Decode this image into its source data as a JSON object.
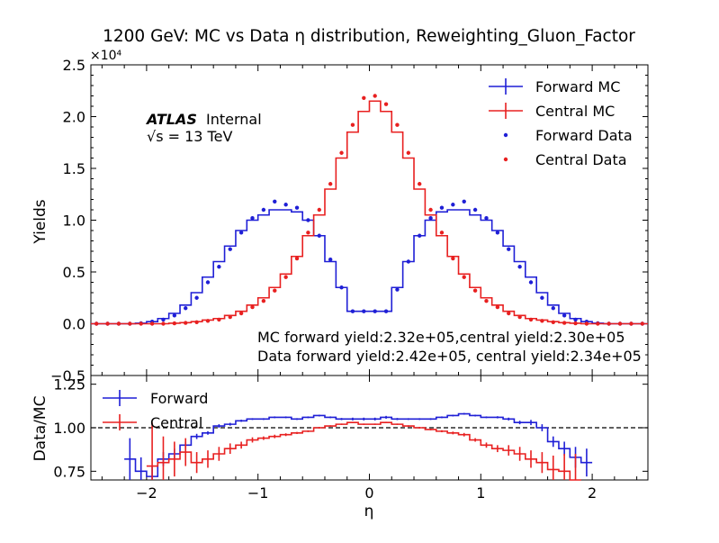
{
  "chart_data": [
    {
      "type": "step-line",
      "panel": "main",
      "title": "1200 GeV: MC vs Data η distribution, Reweighting_Gluon_Factor",
      "ylabel": "Yields",
      "y_scale_label": "×10⁴",
      "xlim": [
        -2.5,
        2.5
      ],
      "ylim": [
        -0.5,
        2.5
      ],
      "y_ticks": [
        "−0.5",
        "0.0",
        "0.5",
        "1.0",
        "1.5",
        "2.0",
        "2.5"
      ],
      "y_tick_values": [
        -0.5,
        0.0,
        0.5,
        1.0,
        1.5,
        2.0,
        2.5
      ],
      "atlas_label": "ATLAS",
      "atlas_sub": "Internal",
      "energy_label": "√s = 13 TeV",
      "annotations": [
        "MC forward yield:2.32e+05,central yield:2.30e+05",
        "Data forward yield:2.42e+05, central yield:2.34e+05"
      ],
      "legend": [
        "Forward MC",
        "Central MC",
        "Forward Data",
        "Central Data"
      ],
      "legend_position": "top-right",
      "bin_edges": [
        -2.5,
        -2.4,
        -2.3,
        -2.2,
        -2.1,
        -2.0,
        -1.9,
        -1.8,
        -1.7,
        -1.6,
        -1.5,
        -1.4,
        -1.3,
        -1.2,
        -1.1,
        -1.0,
        -0.9,
        -0.8,
        -0.7,
        -0.6,
        -0.5,
        -0.4,
        -0.3,
        -0.2,
        -0.1,
        0.0,
        0.1,
        0.2,
        0.3,
        0.4,
        0.5,
        0.6,
        0.7,
        0.8,
        0.9,
        1.0,
        1.1,
        1.2,
        1.3,
        1.4,
        1.5,
        1.6,
        1.7,
        1.8,
        1.9,
        2.0,
        2.1,
        2.2,
        2.3,
        2.4,
        2.5
      ],
      "x_centers": [
        -2.45,
        -2.35,
        -2.25,
        -2.15,
        -2.05,
        -1.95,
        -1.85,
        -1.75,
        -1.65,
        -1.55,
        -1.45,
        -1.35,
        -1.25,
        -1.15,
        -1.05,
        -0.95,
        -0.85,
        -0.75,
        -0.65,
        -0.55,
        -0.45,
        -0.35,
        -0.25,
        -0.15,
        -0.05,
        0.05,
        0.15,
        0.25,
        0.35,
        0.45,
        0.55,
        0.65,
        0.75,
        0.85,
        0.95,
        1.05,
        1.15,
        1.25,
        1.35,
        1.45,
        1.55,
        1.65,
        1.75,
        1.85,
        1.95,
        2.05,
        2.15,
        2.25,
        2.35,
        2.45
      ],
      "series": [
        {
          "name": "Forward MC",
          "color": "#1f1fd6",
          "values": [
            0.0,
            0.0,
            0.0,
            0.0,
            0.005,
            0.02,
            0.05,
            0.1,
            0.18,
            0.3,
            0.45,
            0.6,
            0.75,
            0.9,
            1.0,
            1.05,
            1.1,
            1.1,
            1.08,
            1.0,
            0.85,
            0.6,
            0.35,
            0.12,
            0.12,
            0.12,
            0.12,
            0.35,
            0.6,
            0.85,
            1.0,
            1.08,
            1.1,
            1.1,
            1.05,
            1.0,
            0.9,
            0.75,
            0.6,
            0.45,
            0.3,
            0.18,
            0.1,
            0.05,
            0.02,
            0.005,
            0.0,
            0.0,
            0.0,
            0.0
          ]
        },
        {
          "name": "Central MC",
          "color": "#e82020",
          "values": [
            0.0,
            0.0,
            0.0,
            0.0,
            0.0,
            0.0,
            0.0,
            0.005,
            0.01,
            0.02,
            0.035,
            0.05,
            0.08,
            0.12,
            0.18,
            0.25,
            0.35,
            0.48,
            0.65,
            0.85,
            1.05,
            1.3,
            1.6,
            1.85,
            2.05,
            2.15,
            2.05,
            1.85,
            1.6,
            1.3,
            1.05,
            0.85,
            0.65,
            0.48,
            0.35,
            0.25,
            0.18,
            0.12,
            0.08,
            0.05,
            0.035,
            0.02,
            0.01,
            0.005,
            0.0,
            0.0,
            0.0,
            0.0,
            0.0,
            0.0
          ]
        },
        {
          "name": "Forward Data",
          "color": "#1f1fd6",
          "values": [
            0.0,
            0.0,
            0.0,
            0.0,
            0.005,
            0.02,
            0.04,
            0.08,
            0.15,
            0.25,
            0.4,
            0.55,
            0.72,
            0.88,
            1.02,
            1.1,
            1.18,
            1.15,
            1.12,
            1.0,
            0.85,
            0.62,
            0.35,
            0.12,
            0.12,
            0.12,
            0.12,
            0.33,
            0.6,
            0.85,
            1.02,
            1.12,
            1.15,
            1.18,
            1.1,
            1.02,
            0.88,
            0.72,
            0.55,
            0.4,
            0.25,
            0.15,
            0.08,
            0.04,
            0.02,
            0.005,
            0.0,
            0.0,
            0.0,
            0.0
          ]
        },
        {
          "name": "Central Data",
          "color": "#e82020",
          "values": [
            0.0,
            0.0,
            0.0,
            0.0,
            0.0,
            0.0,
            0.0,
            0.004,
            0.008,
            0.015,
            0.028,
            0.04,
            0.065,
            0.1,
            0.16,
            0.22,
            0.32,
            0.45,
            0.63,
            0.88,
            1.1,
            1.35,
            1.65,
            1.92,
            2.18,
            2.2,
            2.12,
            1.92,
            1.65,
            1.35,
            1.1,
            0.88,
            0.63,
            0.45,
            0.32,
            0.22,
            0.16,
            0.1,
            0.065,
            0.04,
            0.028,
            0.015,
            0.008,
            0.004,
            0.0,
            0.0,
            0.0,
            0.0,
            0.0,
            0.0
          ]
        }
      ]
    },
    {
      "type": "step-line",
      "panel": "ratio",
      "xlabel": "η",
      "ylabel": "Data/MC",
      "xlim": [
        -2.5,
        2.5
      ],
      "ylim": [
        0.7,
        1.3
      ],
      "x_ticks": [
        "−2",
        "−1",
        "0",
        "1",
        "2"
      ],
      "x_tick_values": [
        -2,
        -1,
        0,
        1,
        2
      ],
      "y_ticks": [
        "0.75",
        "1.00",
        "1.25"
      ],
      "y_tick_values": [
        0.75,
        1.0,
        1.25
      ],
      "reference_line": 1.0,
      "legend": [
        "Forward",
        "Central"
      ],
      "legend_position": "top-left",
      "series": [
        {
          "name": "Forward",
          "color": "#1f1fd6",
          "values": [
            null,
            null,
            null,
            0.82,
            0.75,
            0.72,
            0.82,
            0.85,
            0.9,
            0.95,
            0.97,
            1.01,
            1.02,
            1.04,
            1.05,
            1.05,
            1.06,
            1.06,
            1.05,
            1.06,
            1.07,
            1.06,
            1.05,
            1.05,
            1.05,
            1.05,
            1.06,
            1.05,
            1.05,
            1.05,
            1.05,
            1.06,
            1.07,
            1.08,
            1.07,
            1.06,
            1.06,
            1.05,
            1.03,
            1.03,
            1.0,
            0.92,
            0.88,
            0.83,
            0.8,
            null,
            null,
            null,
            null,
            null
          ],
          "errors": [
            null,
            null,
            null,
            0.12,
            0.08,
            0.06,
            0.04,
            0.03,
            0.02,
            0.015,
            0.01,
            0.01,
            0.008,
            0.006,
            0.005,
            0.005,
            0.005,
            0.005,
            0.005,
            0.005,
            0.005,
            0.005,
            0.006,
            0.008,
            0.008,
            0.008,
            0.008,
            0.006,
            0.005,
            0.005,
            0.005,
            0.005,
            0.005,
            0.005,
            0.005,
            0.005,
            0.006,
            0.008,
            0.01,
            0.015,
            0.02,
            0.03,
            0.04,
            0.06,
            0.08,
            null,
            null,
            null,
            null,
            null
          ]
        },
        {
          "name": "Central",
          "color": "#e82020",
          "values": [
            null,
            null,
            null,
            null,
            null,
            0.78,
            0.8,
            0.82,
            0.86,
            0.8,
            0.82,
            0.85,
            0.88,
            0.9,
            0.93,
            0.94,
            0.95,
            0.96,
            0.97,
            0.98,
            1.0,
            1.01,
            1.02,
            1.03,
            1.02,
            1.02,
            1.03,
            1.02,
            1.01,
            1.0,
            0.99,
            0.98,
            0.97,
            0.96,
            0.93,
            0.9,
            0.88,
            0.87,
            0.85,
            0.82,
            0.8,
            0.76,
            0.75,
            0.7,
            null,
            null,
            null,
            null,
            null,
            null
          ],
          "errors": [
            null,
            null,
            null,
            null,
            null,
            0.25,
            0.15,
            0.1,
            0.08,
            0.06,
            0.05,
            0.04,
            0.03,
            0.02,
            0.015,
            0.01,
            0.01,
            0.008,
            0.006,
            0.005,
            0.005,
            0.004,
            0.004,
            0.004,
            0.004,
            0.004,
            0.004,
            0.004,
            0.004,
            0.005,
            0.005,
            0.006,
            0.008,
            0.01,
            0.01,
            0.015,
            0.02,
            0.03,
            0.04,
            0.05,
            0.06,
            0.08,
            0.1,
            0.15,
            null,
            null,
            null,
            null,
            null,
            null
          ]
        }
      ]
    }
  ]
}
